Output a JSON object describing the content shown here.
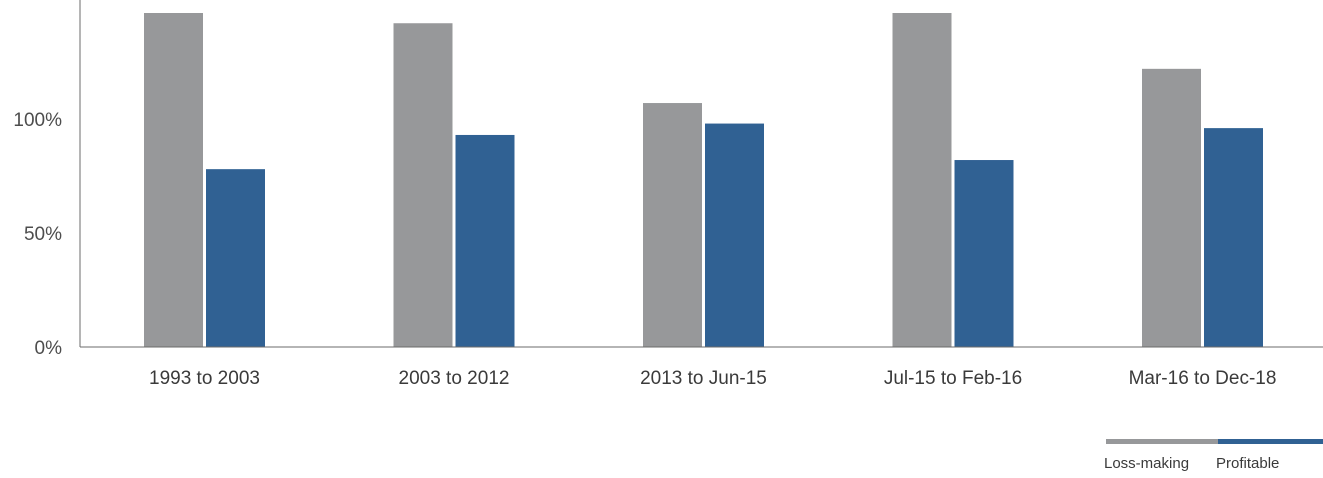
{
  "chart_data": {
    "type": "bar",
    "title": "",
    "xlabel": "",
    "ylabel": "",
    "categories": [
      "1993 to 2003",
      "2003 to 2012",
      "2013 to Jun-15",
      "Jul-15 to Feb-16",
      "Mar-16 to Dec-18"
    ],
    "series": [
      {
        "name": "Loss-making",
        "color": "#97989a",
        "values": [
          150,
          142,
          107,
          150,
          122
        ]
      },
      {
        "name": "Profitable",
        "color": "#306193",
        "values": [
          78,
          93,
          98,
          82,
          96
        ]
      }
    ],
    "ylim": [
      0,
      150
    ],
    "yticks": [
      0,
      50,
      100
    ],
    "ytick_labels": [
      "0%",
      "50%",
      "100%"
    ],
    "grid": false,
    "legend_position": "bottom-right"
  }
}
